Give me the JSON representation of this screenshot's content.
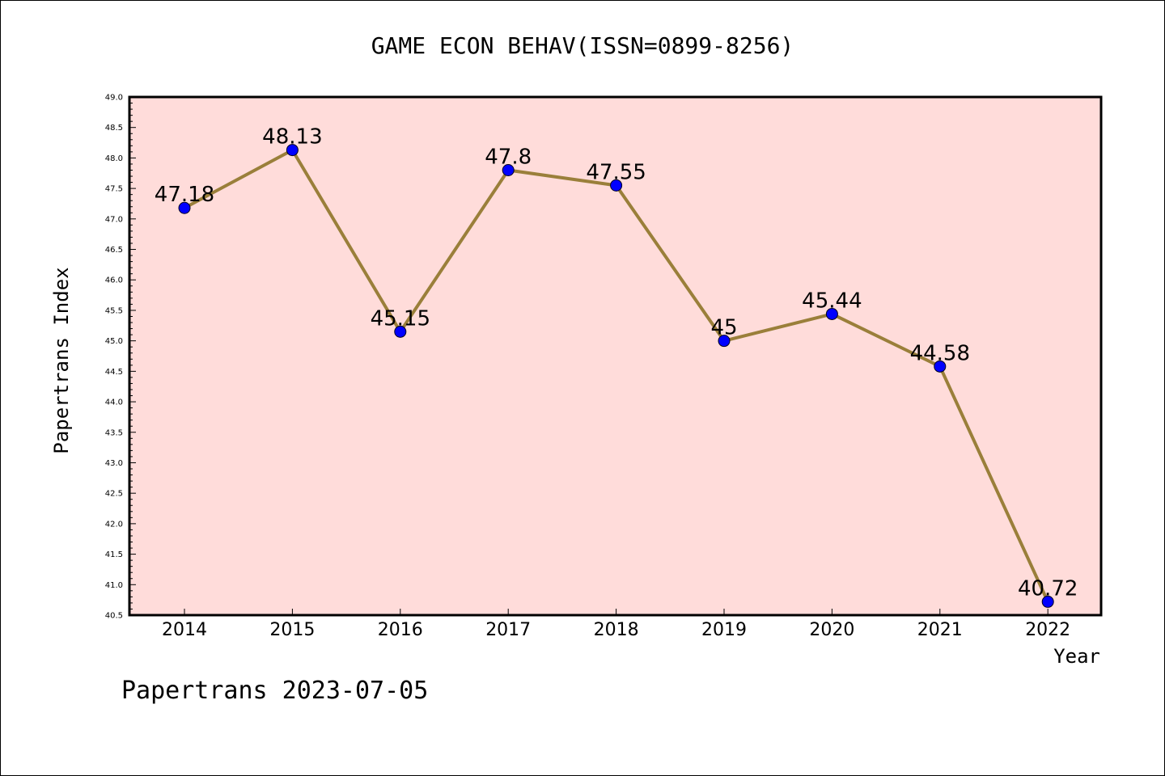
{
  "chart_data": {
    "type": "line",
    "title": "GAME ECON BEHAV(ISSN=0899-8256)",
    "xlabel": "Year",
    "ylabel": "Papertrans Index",
    "footer": "Papertrans 2023-07-05",
    "x": [
      "2014",
      "2015",
      "2016",
      "2017",
      "2018",
      "2019",
      "2020",
      "2021",
      "2022"
    ],
    "series": [
      {
        "values": [
          47.18,
          48.13,
          45.15,
          47.8,
          47.55,
          45,
          45.44,
          44.58,
          40.72
        ],
        "labels": [
          "47.18",
          "48.13",
          "45.15",
          "47.8",
          "47.55",
          "45",
          "45.44",
          "44.58",
          "40.72"
        ]
      }
    ],
    "ylim": [
      40.5,
      49.0
    ],
    "yticks": [
      "40.5",
      "41.0",
      "41.5",
      "42.0",
      "42.5",
      "43.0",
      "43.5",
      "44.0",
      "44.5",
      "45.0",
      "45.5",
      "46.0",
      "46.5",
      "47.0",
      "47.5",
      "48.0",
      "48.5",
      "49.0"
    ],
    "grid": false,
    "colors": {
      "plot_bg": "#ffdcda",
      "line": "#9a7f3a",
      "marker": "#0000ff"
    }
  }
}
